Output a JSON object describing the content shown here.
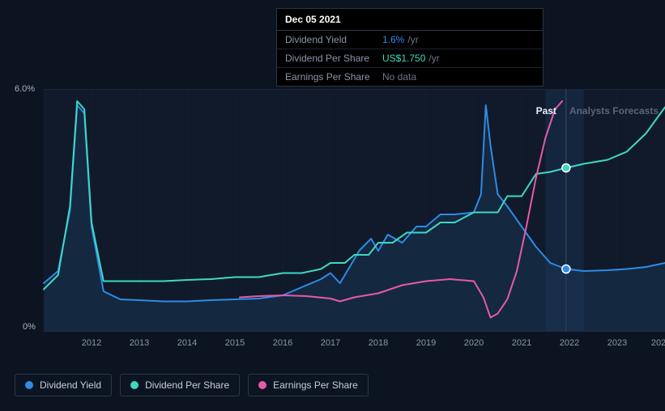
{
  "tooltip": {
    "date": "Dec 05 2021",
    "rows": [
      {
        "label": "Dividend Yield",
        "value": "1.6%",
        "unit": "/yr",
        "value_color": "#2e8be6"
      },
      {
        "label": "Dividend Per Share",
        "value": "US$1.750",
        "unit": "/yr",
        "value_color": "#3dd9c1"
      },
      {
        "label": "Earnings Per Share",
        "value": "No data",
        "unit": "",
        "value_color": "#6b7684"
      }
    ]
  },
  "chart": {
    "type": "line",
    "background_color": "#0d1421",
    "plot_background": "#101a2b",
    "grid_color": "#1c2736",
    "ylim": [
      0,
      6
    ],
    "y_ticks": [
      0,
      6
    ],
    "y_tick_labels": [
      "0%",
      "6.0%"
    ],
    "x_ticks": [
      2012,
      2013,
      2014,
      2015,
      2016,
      2017,
      2018,
      2019,
      2020,
      2021,
      2022,
      2023
    ],
    "x_extra_label": "202",
    "x_range": [
      2011.0,
      2024.0
    ],
    "past_cutoff": 2021.93,
    "region_labels": {
      "past": "Past",
      "forecast": "Analysts Forecasts"
    },
    "vertical_marker": 2021.93,
    "highlight_band": [
      2021.5,
      2022.3
    ],
    "series": [
      {
        "name": "Dividend Yield",
        "color": "#2e8be6",
        "fill": true,
        "fill_color": "#1a3a5c",
        "fill_opacity": 0.45,
        "line_width": 2,
        "marker_x": 2021.93,
        "marker_y": 1.55,
        "data": [
          [
            2011.0,
            1.2
          ],
          [
            2011.3,
            1.5
          ],
          [
            2011.55,
            3.0
          ],
          [
            2011.7,
            5.6
          ],
          [
            2011.85,
            5.4
          ],
          [
            2012.0,
            2.6
          ],
          [
            2012.25,
            1.0
          ],
          [
            2012.6,
            0.8
          ],
          [
            2013.0,
            0.78
          ],
          [
            2013.5,
            0.75
          ],
          [
            2014.0,
            0.75
          ],
          [
            2014.5,
            0.78
          ],
          [
            2015.0,
            0.8
          ],
          [
            2015.5,
            0.82
          ],
          [
            2016.0,
            0.9
          ],
          [
            2016.4,
            1.1
          ],
          [
            2016.8,
            1.3
          ],
          [
            2017.0,
            1.45
          ],
          [
            2017.2,
            1.2
          ],
          [
            2017.45,
            1.7
          ],
          [
            2017.6,
            2.0
          ],
          [
            2017.85,
            2.3
          ],
          [
            2018.0,
            2.0
          ],
          [
            2018.2,
            2.4
          ],
          [
            2018.5,
            2.2
          ],
          [
            2018.8,
            2.6
          ],
          [
            2019.0,
            2.6
          ],
          [
            2019.3,
            2.9
          ],
          [
            2019.6,
            2.9
          ],
          [
            2020.0,
            2.95
          ],
          [
            2020.15,
            3.4
          ],
          [
            2020.25,
            5.6
          ],
          [
            2020.35,
            4.6
          ],
          [
            2020.5,
            3.4
          ],
          [
            2020.7,
            3.1
          ],
          [
            2021.0,
            2.6
          ],
          [
            2021.3,
            2.1
          ],
          [
            2021.6,
            1.7
          ],
          [
            2021.93,
            1.55
          ],
          [
            2022.3,
            1.5
          ],
          [
            2022.8,
            1.52
          ],
          [
            2023.2,
            1.55
          ],
          [
            2023.6,
            1.6
          ],
          [
            2024.0,
            1.7
          ]
        ]
      },
      {
        "name": "Dividend Per Share",
        "color": "#3dd9c1",
        "fill": false,
        "line_width": 2,
        "marker_x": 2021.93,
        "marker_y": 4.05,
        "data": [
          [
            2011.0,
            1.05
          ],
          [
            2011.3,
            1.4
          ],
          [
            2011.55,
            3.1
          ],
          [
            2011.7,
            5.7
          ],
          [
            2011.85,
            5.5
          ],
          [
            2012.0,
            2.7
          ],
          [
            2012.25,
            1.25
          ],
          [
            2012.6,
            1.25
          ],
          [
            2013.0,
            1.25
          ],
          [
            2013.5,
            1.25
          ],
          [
            2014.0,
            1.28
          ],
          [
            2014.5,
            1.3
          ],
          [
            2015.0,
            1.35
          ],
          [
            2015.5,
            1.35
          ],
          [
            2016.0,
            1.45
          ],
          [
            2016.4,
            1.45
          ],
          [
            2016.8,
            1.55
          ],
          [
            2017.0,
            1.7
          ],
          [
            2017.3,
            1.7
          ],
          [
            2017.5,
            1.9
          ],
          [
            2017.8,
            1.9
          ],
          [
            2018.0,
            2.2
          ],
          [
            2018.3,
            2.2
          ],
          [
            2018.6,
            2.45
          ],
          [
            2019.0,
            2.45
          ],
          [
            2019.3,
            2.7
          ],
          [
            2019.6,
            2.7
          ],
          [
            2020.0,
            2.95
          ],
          [
            2020.3,
            2.95
          ],
          [
            2020.5,
            2.95
          ],
          [
            2020.7,
            3.35
          ],
          [
            2021.0,
            3.35
          ],
          [
            2021.3,
            3.9
          ],
          [
            2021.6,
            3.95
          ],
          [
            2021.93,
            4.05
          ],
          [
            2022.3,
            4.15
          ],
          [
            2022.8,
            4.25
          ],
          [
            2023.2,
            4.45
          ],
          [
            2023.6,
            4.9
          ],
          [
            2024.0,
            5.55
          ]
        ]
      },
      {
        "name": "Earnings Per Share",
        "color": "#e55aa8",
        "fill": false,
        "line_width": 2,
        "data": [
          [
            2015.1,
            0.85
          ],
          [
            2015.5,
            0.88
          ],
          [
            2016.0,
            0.9
          ],
          [
            2016.5,
            0.88
          ],
          [
            2017.0,
            0.82
          ],
          [
            2017.2,
            0.75
          ],
          [
            2017.5,
            0.85
          ],
          [
            2018.0,
            0.95
          ],
          [
            2018.5,
            1.15
          ],
          [
            2019.0,
            1.25
          ],
          [
            2019.5,
            1.3
          ],
          [
            2020.0,
            1.25
          ],
          [
            2020.2,
            0.85
          ],
          [
            2020.35,
            0.35
          ],
          [
            2020.5,
            0.45
          ],
          [
            2020.7,
            0.8
          ],
          [
            2020.9,
            1.5
          ],
          [
            2021.1,
            2.6
          ],
          [
            2021.3,
            3.8
          ],
          [
            2021.5,
            4.8
          ],
          [
            2021.7,
            5.5
          ],
          [
            2021.85,
            5.7
          ]
        ]
      }
    ]
  },
  "legend": [
    {
      "label": "Dividend Yield",
      "color": "#2e8be6"
    },
    {
      "label": "Dividend Per Share",
      "color": "#3dd9c1"
    },
    {
      "label": "Earnings Per Share",
      "color": "#e55aa8"
    }
  ],
  "fonts": {
    "axis_fontsize": 11,
    "legend_fontsize": 12,
    "tooltip_fontsize": 12
  }
}
